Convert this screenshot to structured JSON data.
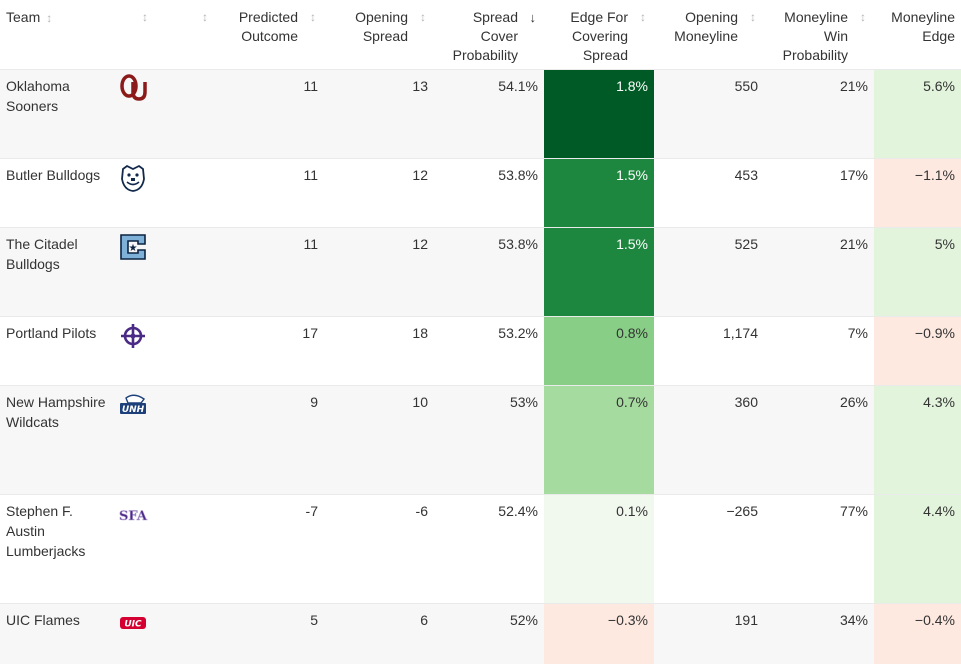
{
  "headers": {
    "team": "Team",
    "predicted": [
      "Predicted",
      "Outcome"
    ],
    "opening_spread": [
      "Opening",
      "Spread"
    ],
    "spread_cover": [
      "Spread Cover",
      "Probability"
    ],
    "edge_cover": [
      "Edge For",
      "Covering",
      "Spread"
    ],
    "opening_ml": [
      "Opening",
      "Moneyline"
    ],
    "ml_win": [
      "Moneyline",
      "Win",
      "Probability"
    ],
    "ml_edge": [
      "Moneyline",
      "Edge"
    ]
  },
  "sort_icons": {
    "neutral": "↕",
    "active_desc": "↓"
  },
  "colors": {
    "edge_darkest": "#005a25",
    "edge_dark": "#1e873f",
    "edge_mid": "#88ce86",
    "edge_light": "#a6dba0",
    "edge_faint": "#f1f9ef",
    "neg_faint": "#fde9e0",
    "pos_faint": "#e3f4dd",
    "text_dark": "#333333",
    "text_light": "#ffffff"
  },
  "rows": [
    {
      "team": "Oklahoma Sooners",
      "logo": "oklahoma-ou-logo-icon",
      "predicted": "11",
      "opening_spread": "13",
      "spread_cover": "54.1%",
      "edge_cover": "1.8%",
      "edge_bg": "#005a25",
      "edge_fg": "#ffffff",
      "opening_ml": "550",
      "ml_win": "21%",
      "ml_edge": "5.6%",
      "ml_edge_bg": "#e3f4dd",
      "row_h": 89
    },
    {
      "team": "Butler Bulldogs",
      "logo": "butler-bulldog-logo-icon",
      "predicted": "11",
      "opening_spread": "12",
      "spread_cover": "53.8%",
      "edge_cover": "1.5%",
      "edge_bg": "#1e873f",
      "edge_fg": "#ffffff",
      "opening_ml": "453",
      "ml_win": "17%",
      "ml_edge": "−1.1%",
      "ml_edge_bg": "#fde9e0",
      "row_h": 69
    },
    {
      "team": "The Citadel Bulldogs",
      "logo": "citadel-c-logo-icon",
      "predicted": "11",
      "opening_spread": "12",
      "spread_cover": "53.8%",
      "edge_cover": "1.5%",
      "edge_bg": "#1e873f",
      "edge_fg": "#ffffff",
      "opening_ml": "525",
      "ml_win": "21%",
      "ml_edge": "5%",
      "ml_edge_bg": "#e3f4dd",
      "row_h": 89
    },
    {
      "team": "Portland Pilots",
      "logo": "portland-pilots-logo-icon",
      "predicted": "17",
      "opening_spread": "18",
      "spread_cover": "53.2%",
      "edge_cover": "0.8%",
      "edge_bg": "#88ce86",
      "edge_fg": "#333333",
      "opening_ml": "1,174",
      "ml_win": "7%",
      "ml_edge": "−0.9%",
      "ml_edge_bg": "#fde9e0",
      "row_h": 69
    },
    {
      "team": "New Hampshire Wildcats",
      "logo": "unh-wildcats-logo-icon",
      "predicted": "9",
      "opening_spread": "10",
      "spread_cover": "53%",
      "edge_cover": "0.7%",
      "edge_bg": "#a6dba0",
      "edge_fg": "#333333",
      "opening_ml": "360",
      "ml_win": "26%",
      "ml_edge": "4.3%",
      "ml_edge_bg": "#e3f4dd",
      "row_h": 109
    },
    {
      "team": "Stephen F. Austin Lumberjacks",
      "logo": "sfa-lumberjacks-logo-icon",
      "predicted": "-7",
      "opening_spread": "-6",
      "spread_cover": "52.4%",
      "edge_cover": "0.1%",
      "edge_bg": "#f1f9ef",
      "edge_fg": "#333333",
      "opening_ml": "−265",
      "ml_win": "77%",
      "ml_edge": "4.4%",
      "ml_edge_bg": "#e3f4dd",
      "row_h": 109
    },
    {
      "team": "UIC Flames",
      "logo": "uic-flames-logo-icon",
      "predicted": "5",
      "opening_spread": "6",
      "spread_cover": "52%",
      "edge_cover": "−0.3%",
      "edge_bg": "#fde9e0",
      "edge_fg": "#333333",
      "opening_ml": "191",
      "ml_win": "34%",
      "ml_edge": "−0.4%",
      "ml_edge_bg": "#fde9e0",
      "row_h": 60
    }
  ]
}
